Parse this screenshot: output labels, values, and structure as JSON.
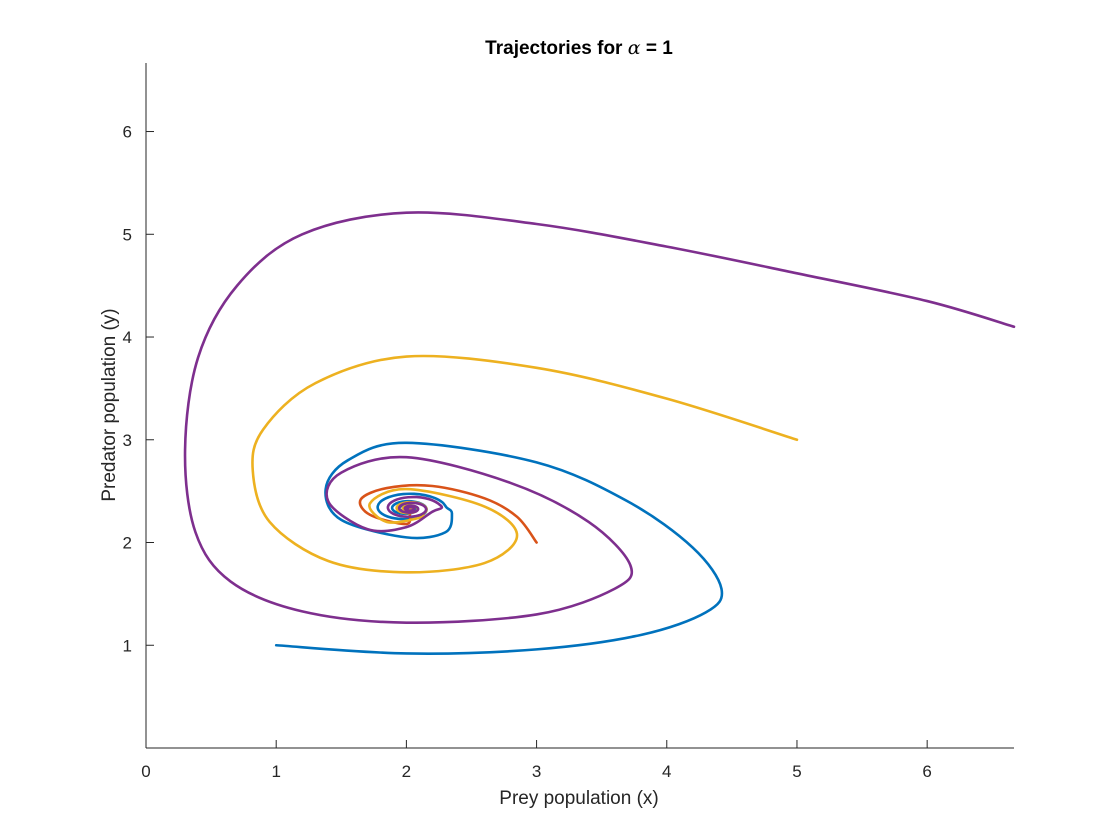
{
  "chart_data": {
    "type": "line",
    "title": "Trajectories for α = 1",
    "title_parts": {
      "prefix": "Trajectories for ",
      "symbol": "α",
      "suffix": " = 1"
    },
    "xlabel": "Prey population (x)",
    "ylabel": "Predator population (y)",
    "xlim": [
      0,
      6.667
    ],
    "ylim": [
      0,
      6.667
    ],
    "xticks": [
      0,
      1,
      2,
      3,
      4,
      5,
      6
    ],
    "yticks": [
      1,
      2,
      3,
      4,
      5,
      6
    ],
    "grid": false,
    "box": false,
    "series": [
      {
        "color": "#0072BD",
        "start": [
          1,
          1
        ],
        "anchors": [
          [
            1.0,
            1.0
          ],
          [
            2.0,
            0.92
          ],
          [
            3.0,
            0.96
          ],
          [
            3.8,
            1.1
          ],
          [
            4.3,
            1.32
          ],
          [
            4.42,
            1.55
          ],
          [
            4.2,
            1.95
          ],
          [
            3.7,
            2.4
          ],
          [
            3.0,
            2.78
          ],
          [
            2.0,
            2.97
          ],
          [
            1.55,
            2.8
          ],
          [
            1.38,
            2.52
          ],
          [
            1.5,
            2.22
          ],
          [
            2.0,
            2.05
          ],
          [
            2.3,
            2.1
          ],
          [
            2.35,
            2.28
          ]
        ]
      },
      {
        "color": "#D95319",
        "start": [
          3,
          2
        ],
        "anchors": [
          [
            3.0,
            2.0
          ],
          [
            2.85,
            2.25
          ],
          [
            2.6,
            2.43
          ],
          [
            2.2,
            2.55
          ],
          [
            1.85,
            2.53
          ],
          [
            1.65,
            2.42
          ],
          [
            1.72,
            2.27
          ],
          [
            2.0,
            2.18
          ]
        ]
      },
      {
        "color": "#EDB120",
        "start": [
          5,
          3
        ],
        "anchors": [
          [
            5.0,
            3.0
          ],
          [
            4.0,
            3.4
          ],
          [
            3.0,
            3.7
          ],
          [
            2.0,
            3.81
          ],
          [
            1.3,
            3.55
          ],
          [
            0.9,
            3.1
          ],
          [
            0.82,
            2.7
          ],
          [
            0.95,
            2.2
          ],
          [
            1.4,
            1.82
          ],
          [
            2.0,
            1.71
          ],
          [
            2.6,
            1.8
          ],
          [
            2.85,
            2.07
          ],
          [
            2.6,
            2.35
          ],
          [
            2.0,
            2.52
          ],
          [
            1.72,
            2.38
          ],
          [
            1.85,
            2.2
          ],
          [
            2.1,
            2.24
          ]
        ]
      },
      {
        "color": "#7E2F8E",
        "start": [
          6.667,
          4.1
        ],
        "anchors": [
          [
            6.667,
            4.1
          ],
          [
            6.0,
            4.35
          ],
          [
            5.0,
            4.62
          ],
          [
            4.0,
            4.88
          ],
          [
            3.0,
            5.1
          ],
          [
            2.0,
            5.21
          ],
          [
            1.2,
            5.0
          ],
          [
            0.7,
            4.5
          ],
          [
            0.4,
            3.8
          ],
          [
            0.3,
            2.9
          ],
          [
            0.38,
            2.1
          ],
          [
            0.65,
            1.62
          ],
          [
            1.2,
            1.33
          ],
          [
            2.0,
            1.22
          ],
          [
            3.0,
            1.3
          ],
          [
            3.6,
            1.55
          ],
          [
            3.72,
            1.78
          ],
          [
            3.4,
            2.2
          ],
          [
            2.8,
            2.58
          ],
          [
            2.0,
            2.83
          ],
          [
            1.5,
            2.68
          ],
          [
            1.4,
            2.4
          ],
          [
            1.7,
            2.13
          ],
          [
            2.0,
            2.15
          ],
          [
            2.2,
            2.3
          ]
        ]
      }
    ]
  }
}
